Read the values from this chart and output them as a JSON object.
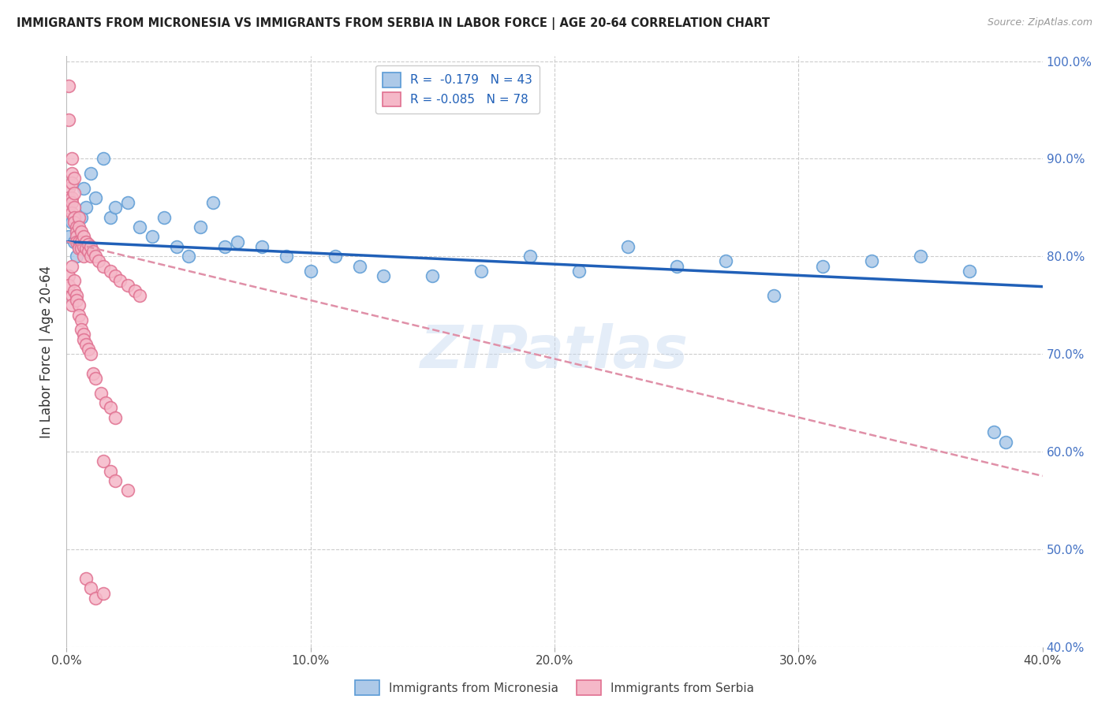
{
  "title": "IMMIGRANTS FROM MICRONESIA VS IMMIGRANTS FROM SERBIA IN LABOR FORCE | AGE 20-64 CORRELATION CHART",
  "source": "Source: ZipAtlas.com",
  "ylabel": "In Labor Force | Age 20-64",
  "xlim": [
    0.0,
    0.4
  ],
  "ylim": [
    0.4,
    1.005
  ],
  "xticks": [
    0.0,
    0.1,
    0.2,
    0.3,
    0.4
  ],
  "yticks": [
    0.4,
    0.5,
    0.6,
    0.7,
    0.8,
    0.9,
    1.0
  ],
  "ytick_labels_right": [
    "40.0%",
    "50.0%",
    "60.0%",
    "70.0%",
    "80.0%",
    "90.0%",
    "100.0%"
  ],
  "xtick_labels": [
    "0.0%",
    "10.0%",
    "20.0%",
    "30.0%",
    "40.0%"
  ],
  "micronesia_fill": "#adc9e8",
  "micronesia_edge": "#5b9bd5",
  "serbia_fill": "#f5b8c8",
  "serbia_edge": "#e07090",
  "trend_blue": "#2060b8",
  "trend_pink": "#e090a8",
  "R_micronesia": -0.179,
  "N_micronesia": 43,
  "R_serbia": -0.085,
  "N_serbia": 78,
  "watermark": "ZIPatlas",
  "mic_intercept": 0.815,
  "mic_slope": -0.115,
  "ser_intercept": 0.815,
  "ser_slope": -0.6,
  "mic_x": [
    0.001,
    0.002,
    0.003,
    0.004,
    0.005,
    0.006,
    0.007,
    0.008,
    0.01,
    0.012,
    0.015,
    0.018,
    0.02,
    0.025,
    0.03,
    0.035,
    0.04,
    0.045,
    0.05,
    0.055,
    0.06,
    0.065,
    0.07,
    0.08,
    0.09,
    0.1,
    0.11,
    0.12,
    0.13,
    0.15,
    0.17,
    0.19,
    0.21,
    0.23,
    0.25,
    0.27,
    0.29,
    0.31,
    0.33,
    0.35,
    0.37,
    0.38,
    0.385
  ],
  "mic_y": [
    0.82,
    0.835,
    0.815,
    0.8,
    0.81,
    0.84,
    0.87,
    0.85,
    0.885,
    0.86,
    0.9,
    0.84,
    0.85,
    0.855,
    0.83,
    0.82,
    0.84,
    0.81,
    0.8,
    0.83,
    0.855,
    0.81,
    0.815,
    0.81,
    0.8,
    0.785,
    0.8,
    0.79,
    0.78,
    0.78,
    0.785,
    0.8,
    0.785,
    0.81,
    0.79,
    0.795,
    0.76,
    0.79,
    0.795,
    0.8,
    0.785,
    0.62,
    0.61
  ],
  "ser_x": [
    0.001,
    0.001,
    0.001,
    0.001,
    0.001,
    0.002,
    0.002,
    0.002,
    0.002,
    0.002,
    0.002,
    0.003,
    0.003,
    0.003,
    0.003,
    0.003,
    0.004,
    0.004,
    0.004,
    0.004,
    0.005,
    0.005,
    0.005,
    0.005,
    0.006,
    0.006,
    0.006,
    0.007,
    0.007,
    0.007,
    0.008,
    0.008,
    0.009,
    0.009,
    0.01,
    0.01,
    0.011,
    0.012,
    0.013,
    0.015,
    0.018,
    0.02,
    0.022,
    0.025,
    0.028,
    0.03,
    0.001,
    0.002,
    0.001,
    0.002,
    0.002,
    0.003,
    0.003,
    0.004,
    0.004,
    0.005,
    0.005,
    0.006,
    0.006,
    0.007,
    0.007,
    0.008,
    0.009,
    0.01,
    0.011,
    0.012,
    0.014,
    0.016,
    0.018,
    0.02,
    0.015,
    0.018,
    0.02,
    0.025,
    0.008,
    0.01,
    0.012,
    0.015
  ],
  "ser_y": [
    0.975,
    0.94,
    0.87,
    0.86,
    0.85,
    0.9,
    0.885,
    0.875,
    0.86,
    0.855,
    0.845,
    0.88,
    0.865,
    0.85,
    0.84,
    0.835,
    0.83,
    0.825,
    0.82,
    0.815,
    0.84,
    0.83,
    0.815,
    0.808,
    0.825,
    0.815,
    0.808,
    0.82,
    0.81,
    0.8,
    0.815,
    0.808,
    0.812,
    0.805,
    0.81,
    0.8,
    0.805,
    0.8,
    0.795,
    0.79,
    0.785,
    0.78,
    0.775,
    0.77,
    0.765,
    0.76,
    0.78,
    0.79,
    0.77,
    0.76,
    0.75,
    0.775,
    0.765,
    0.76,
    0.755,
    0.75,
    0.74,
    0.735,
    0.725,
    0.72,
    0.715,
    0.71,
    0.705,
    0.7,
    0.68,
    0.675,
    0.66,
    0.65,
    0.645,
    0.635,
    0.59,
    0.58,
    0.57,
    0.56,
    0.47,
    0.46,
    0.45,
    0.455
  ]
}
